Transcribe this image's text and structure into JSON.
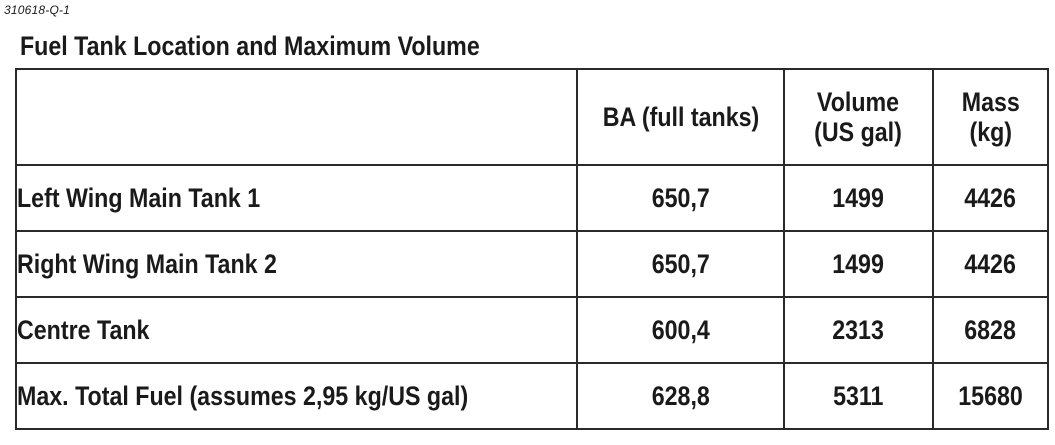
{
  "ref_code": "310618-Q-1",
  "title": "Fuel Tank Location and Maximum Volume",
  "table": {
    "headers": {
      "name": "",
      "ba": "BA (full tanks)",
      "volume_line1": "Volume",
      "volume_line2": "(US gal)",
      "mass_line1": "Mass",
      "mass_line2": "(kg)"
    },
    "rows": [
      {
        "name": "Left Wing Main Tank 1",
        "ba": "650,7",
        "volume": "1499",
        "mass": "4426"
      },
      {
        "name": "Right Wing Main Tank 2",
        "ba": "650,7",
        "volume": "1499",
        "mass": "4426"
      },
      {
        "name": "Centre Tank",
        "ba": "600,4",
        "volume": "2313",
        "mass": "6828"
      },
      {
        "name": "Max. Total Fuel (assumes 2,95 kg/US gal)",
        "ba": "628,8",
        "volume": "5311",
        "mass": "15680"
      }
    ]
  }
}
